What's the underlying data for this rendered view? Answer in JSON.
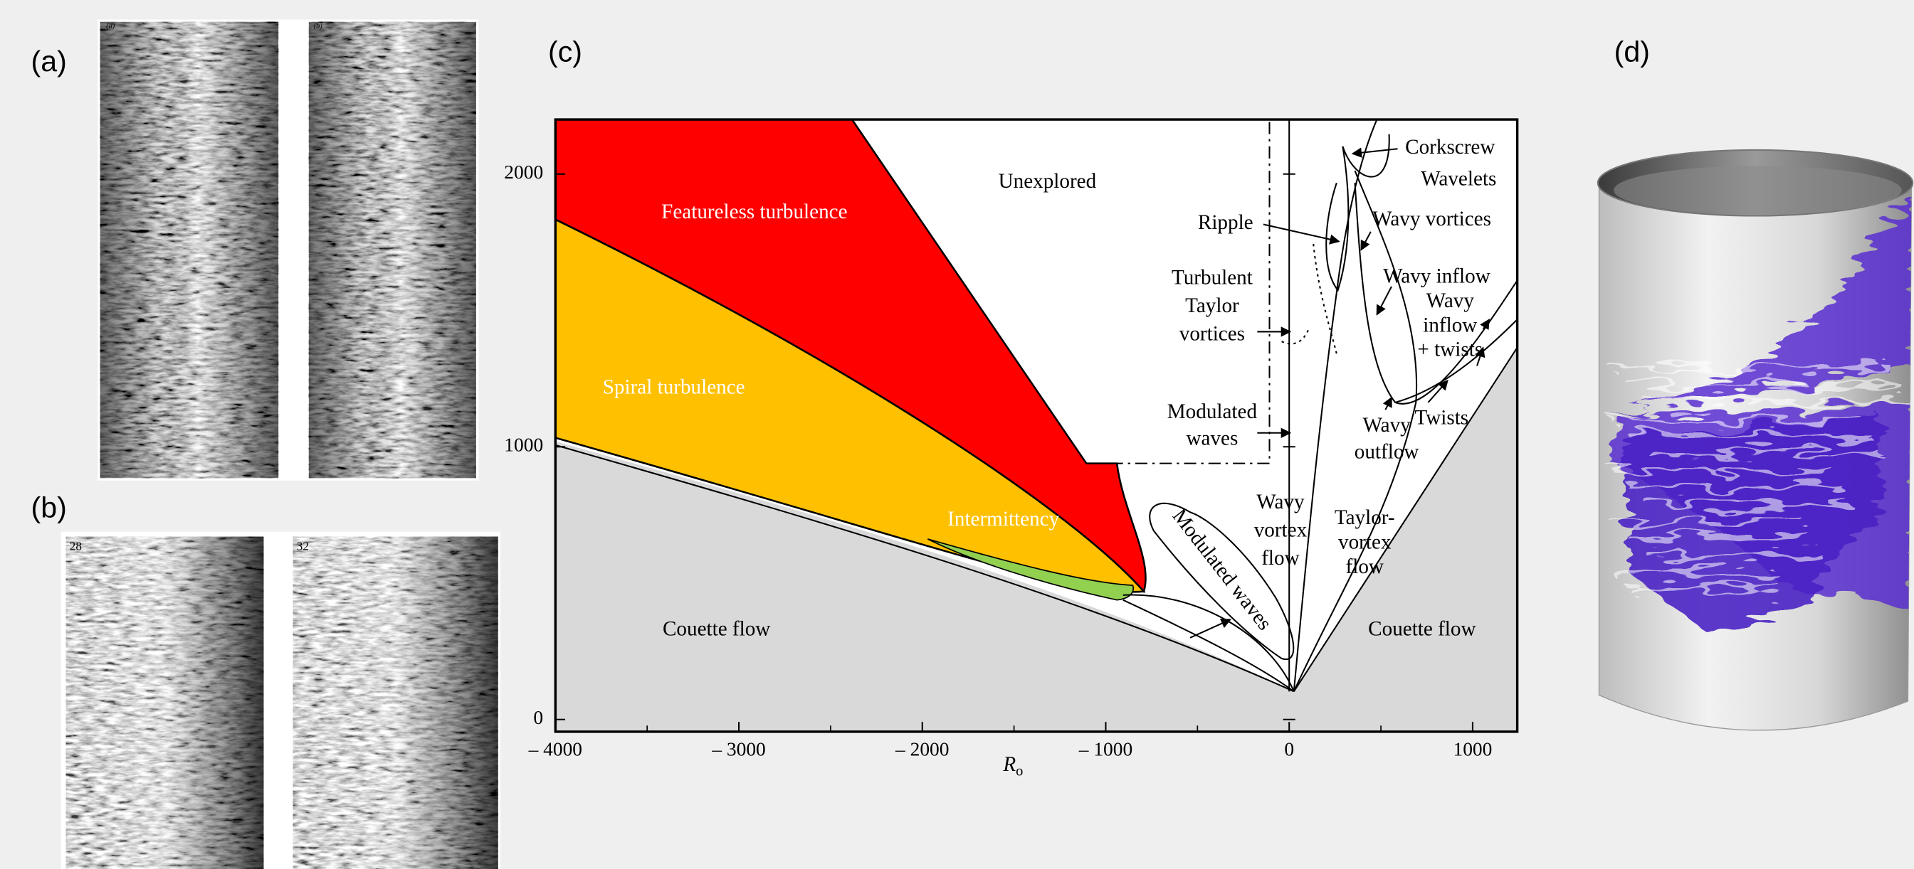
{
  "panel_labels": [
    "(a)",
    "(b)",
    "(c)",
    "(d)"
  ],
  "photos_a_labels": [
    "(a)",
    "(b)"
  ],
  "photos_b_labels": [
    "28",
    "32"
  ],
  "diagram": {
    "x_axis_label": "R",
    "x_axis_label_sub": "o",
    "xlim": [
      -4000,
      1200
    ],
    "ylim": [
      0,
      2200
    ],
    "xticks": [
      {
        "value": -4000,
        "label": "– 4000"
      },
      {
        "value": -3000,
        "label": "– 3000"
      },
      {
        "value": -2000,
        "label": "– 2000"
      },
      {
        "value": -1000,
        "label": "– 1000"
      },
      0,
      1000
    ],
    "yticks": [
      0,
      1000,
      2000
    ],
    "labels": [
      {
        "lines": [
          "Unexplored"
        ]
      },
      {
        "lines": [
          "Featureless turbulence"
        ]
      },
      {
        "lines": [
          "Spiral turbulence"
        ]
      },
      {
        "lines": [
          "Intermittency"
        ]
      },
      {
        "lines": [
          "Couette flow"
        ]
      },
      {
        "lines": [
          "Couette flow"
        ]
      },
      {
        "lines": [
          "Corkscrew"
        ]
      },
      {
        "lines": [
          "Wavelets"
        ]
      },
      {
        "lines": [
          "Ripple"
        ]
      },
      {
        "lines": [
          "Wavy vortices"
        ]
      },
      {
        "lines": [
          "Turbulent",
          "Taylor",
          "vortices"
        ]
      },
      {
        "lines": [
          "Wavy inflow"
        ]
      },
      {
        "lines": [
          "Wavy",
          "inflow",
          "+ twists"
        ]
      },
      {
        "lines": [
          "Modulated",
          "waves"
        ]
      },
      {
        "lines": [
          "Twists"
        ]
      },
      {
        "lines": [
          "Wavy",
          "outflow"
        ]
      },
      {
        "lines": [
          "Wavy",
          "vortex",
          "flow"
        ]
      },
      {
        "lines": [
          "Taylor-",
          "vortex",
          "flow"
        ]
      },
      {
        "lines": [
          "Modulated waves"
        ]
      }
    ]
  }
}
